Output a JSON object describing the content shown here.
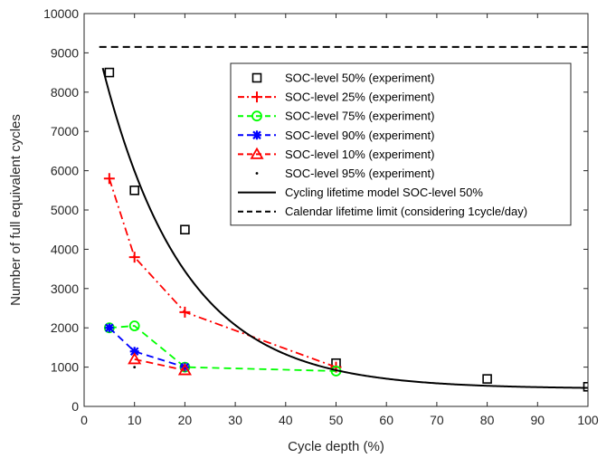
{
  "chart_data": {
    "type": "line",
    "title": "",
    "xlabel": "Cycle depth (%)",
    "ylabel": "Number of full equivalent cycles",
    "xlim": [
      0,
      100
    ],
    "ylim": [
      0,
      10000
    ],
    "xticks": [
      0,
      10,
      20,
      30,
      40,
      50,
      60,
      70,
      80,
      90,
      100
    ],
    "yticks": [
      0,
      1000,
      2000,
      3000,
      4000,
      5000,
      6000,
      7000,
      8000,
      9000,
      10000
    ],
    "grid": false,
    "legend_position": "top-right",
    "series": [
      {
        "name": "SOC-level 50% (experiment)",
        "color": "#000000",
        "marker": "square",
        "line": "none",
        "x": [
          5,
          10,
          20,
          50,
          80,
          100
        ],
        "y": [
          8500,
          5500,
          4500,
          1100,
          700,
          500
        ]
      },
      {
        "name": "SOC-level 25% (experiment)",
        "color": "#ff0000",
        "marker": "plus",
        "line": "dashdot",
        "x": [
          5,
          10,
          20,
          50
        ],
        "y": [
          5800,
          3800,
          2400,
          1000
        ]
      },
      {
        "name": "SOC-level 75% (experiment)",
        "color": "#00ff00",
        "marker": "circle",
        "line": "dashed",
        "x": [
          5,
          10,
          20,
          50
        ],
        "y": [
          2000,
          2050,
          1000,
          900
        ]
      },
      {
        "name": "SOC-level 90% (experiment)",
        "color": "#0000ff",
        "marker": "asterisk",
        "line": "dashed",
        "x": [
          5,
          10,
          20
        ],
        "y": [
          2000,
          1400,
          1000
        ]
      },
      {
        "name": "SOC-level 10% (experiment)",
        "color": "#ff0000",
        "marker": "triangle",
        "line": "dashed",
        "x": [
          10,
          20
        ],
        "y": [
          1200,
          920
        ]
      },
      {
        "name": "SOC-level 95% (experiment)",
        "color": "#000000",
        "marker": "dot",
        "line": "none",
        "x": [
          10
        ],
        "y": [
          1000
        ]
      },
      {
        "name": "Cycling lifetime model SOC-level 50%",
        "color": "#000000",
        "marker": "none",
        "line": "solid",
        "model": {
          "form": "a*exp(-b*x)+c",
          "a": 10250,
          "b": 0.0615,
          "c": 450
        },
        "x_range": [
          3.7,
          100
        ]
      },
      {
        "name": "Calendar lifetime limit (considering 1cycle/day)",
        "color": "#000000",
        "marker": "none",
        "line": "dashed",
        "x": [
          3,
          100
        ],
        "y": [
          9150,
          9150
        ]
      }
    ]
  }
}
